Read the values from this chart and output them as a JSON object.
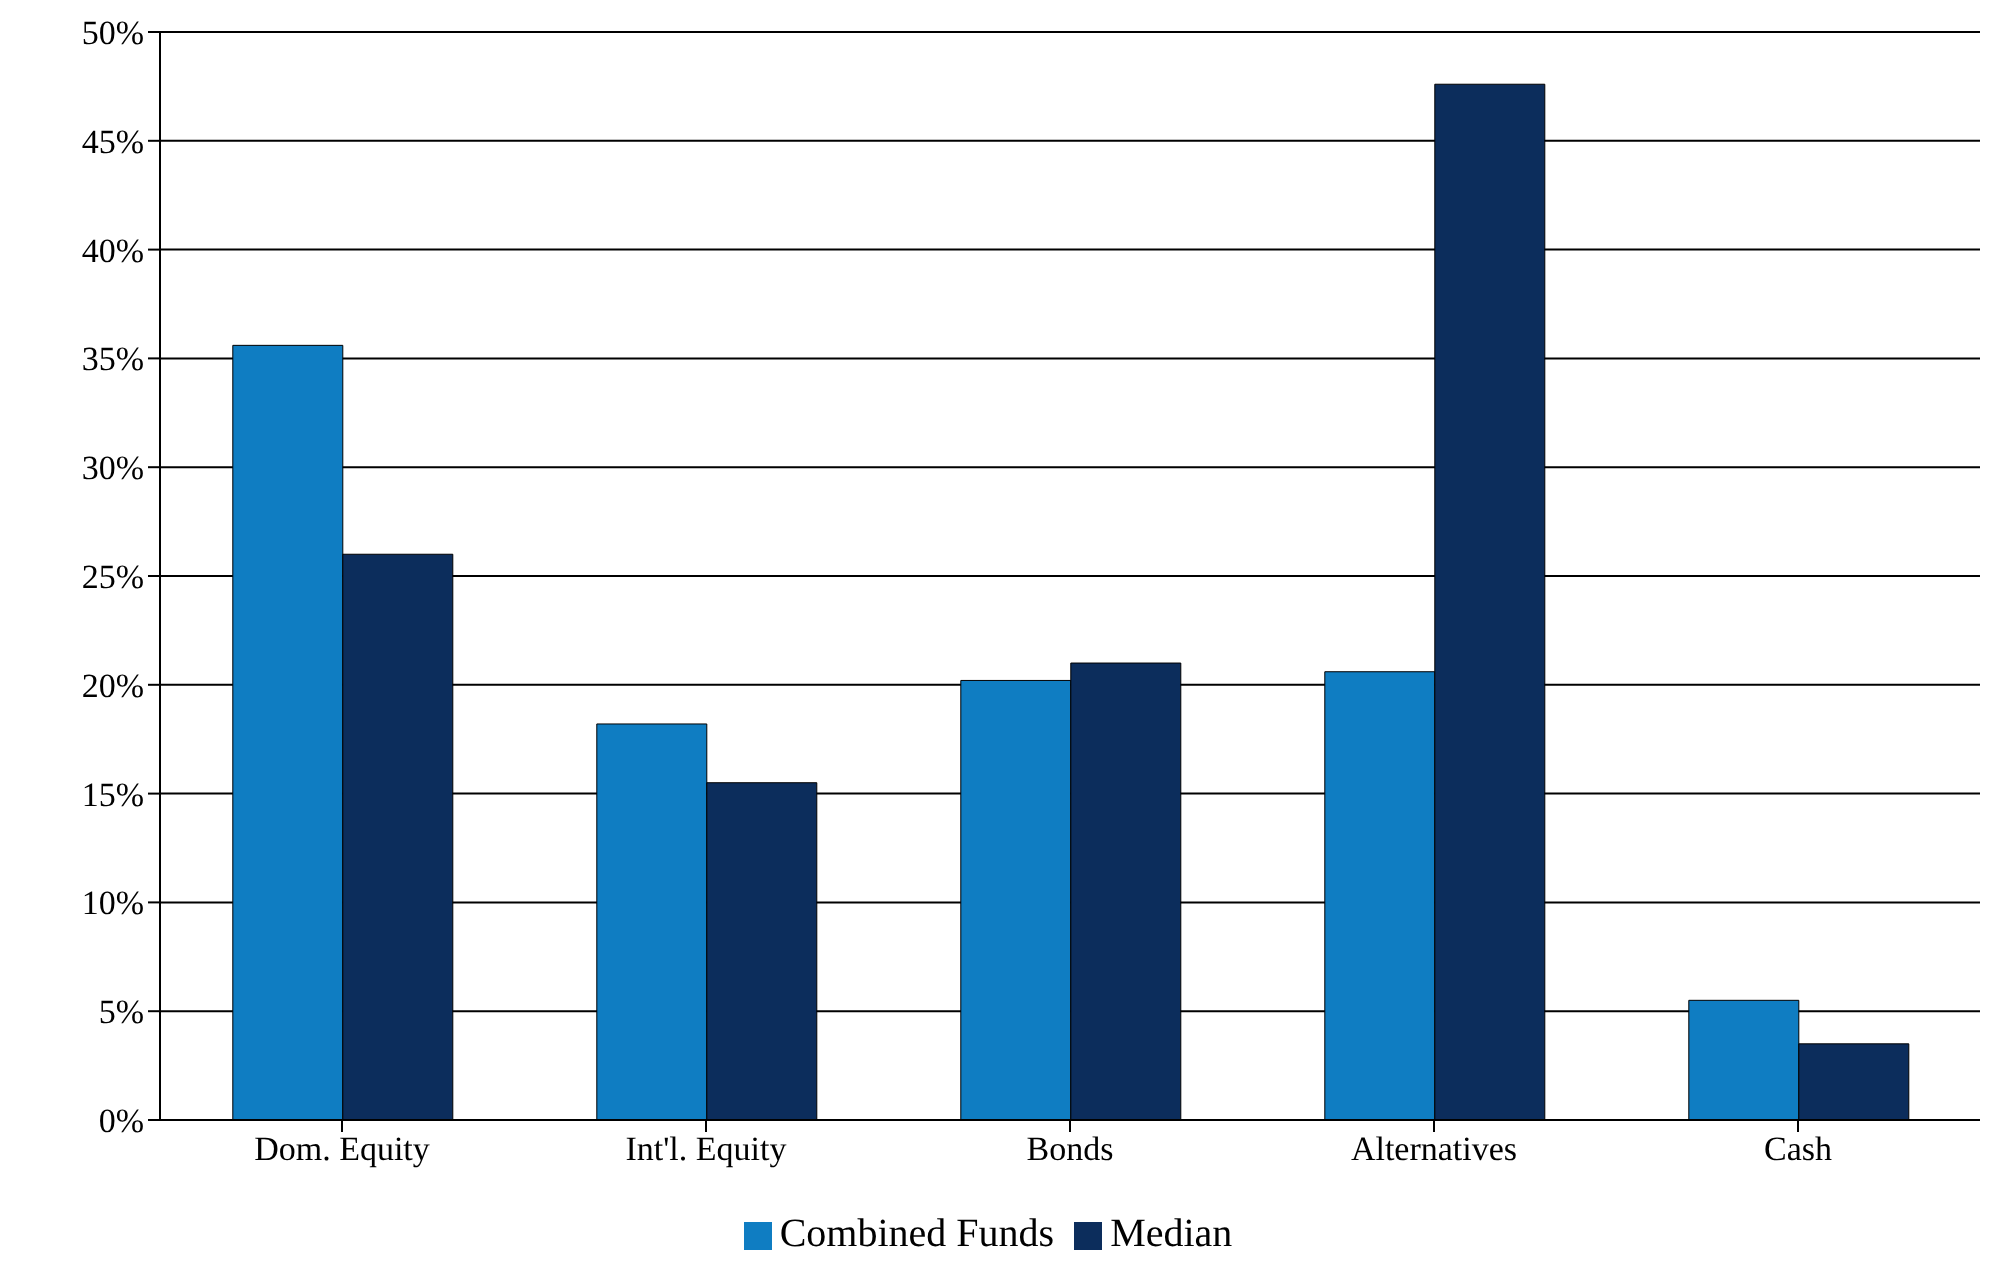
{
  "chart_data": {
    "type": "bar",
    "categories": [
      "Dom. Equity",
      "Int'l. Equity",
      "Bonds",
      "Alternatives",
      "Cash"
    ],
    "series": [
      {
        "name": "Combined Funds",
        "color": "#0f7dc2",
        "values": [
          35.6,
          18.2,
          20.2,
          20.6,
          5.5
        ]
      },
      {
        "name": "Median",
        "color": "#0c2d5c",
        "values": [
          26.0,
          15.5,
          21.0,
          47.6,
          3.5
        ]
      }
    ],
    "ylim": [
      0,
      50
    ],
    "yticks": [
      {
        "value": 0,
        "label": "0%"
      },
      {
        "value": 5,
        "label": "5%"
      },
      {
        "value": 10,
        "label": "10%"
      },
      {
        "value": 15,
        "label": "15%"
      },
      {
        "value": 20,
        "label": "20%"
      },
      {
        "value": 25,
        "label": "25%"
      },
      {
        "value": 30,
        "label": "30%"
      },
      {
        "value": 35,
        "label": "35%"
      },
      {
        "value": 40,
        "label": "40%"
      },
      {
        "value": 45,
        "label": "45%"
      },
      {
        "value": 50,
        "label": "50%"
      }
    ],
    "grid": "y",
    "legend": "bottom"
  }
}
